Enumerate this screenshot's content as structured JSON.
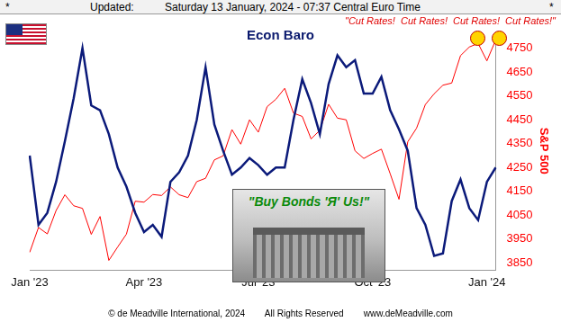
{
  "chart_data": {
    "type": "line",
    "header": [
      "*",
      "Updated:",
      "Saturday 13 January, 2024 - 07:37 Central Euro Time",
      "*"
    ],
    "title": "Econ Baro",
    "annotations": [
      "\"Cut Rates!  Cut Rates!  Cut Rates!  Cut Rates!\"",
      "\"Buy Bonds 'Я' Us!\""
    ],
    "footer": [
      "© de Meadville International, 2024",
      "All Rights Reserved",
      "www.deMeadville.com"
    ],
    "y_label": "S&P 500",
    "categories": [
      "Jan '23",
      null,
      null,
      null,
      null,
      null,
      null,
      null,
      null,
      null,
      null,
      null,
      null,
      "Apr '23",
      null,
      null,
      null,
      null,
      null,
      null,
      null,
      null,
      null,
      null,
      null,
      null,
      "Jul '23",
      null,
      null,
      null,
      null,
      null,
      null,
      null,
      null,
      null,
      null,
      null,
      null,
      "Oct '23",
      null,
      null,
      null,
      null,
      null,
      null,
      null,
      null,
      null,
      null,
      null,
      null,
      "Jan '24",
      null
    ],
    "series": [
      {
        "name": "S&P 500",
        "color": "#ff0000",
        "values": [
          3895,
          3999,
          3972,
          4070,
          4136,
          4090,
          4079,
          3970,
          4045,
          3861,
          3917,
          3971,
          4109,
          4105,
          4137,
          4133,
          4169,
          4136,
          4124,
          4191,
          4205,
          4282,
          4299,
          4409,
          4348,
          4450,
          4398,
          4505,
          4536,
          4582,
          4478,
          4464,
          4370,
          4406,
          4515,
          4457,
          4450,
          4320,
          4288,
          4309,
          4327,
          4224,
          4117,
          4358,
          4415,
          4514,
          4559,
          4595,
          4604,
          4719,
          4755,
          4770,
          4697,
          4784
        ]
      },
      {
        "name": "Econ Baro",
        "color": "#0b1a7a",
        "axis": "y2",
        "values": [
          48,
          19,
          24,
          37,
          54,
          72,
          93,
          69,
          67,
          57,
          43,
          35,
          24,
          16,
          19,
          14,
          37,
          41,
          48,
          63,
          85,
          61,
          50,
          40,
          43,
          47,
          44,
          40,
          43,
          43,
          63,
          80,
          70,
          57,
          78,
          90,
          85,
          88,
          74,
          74,
          81,
          67,
          59,
          50,
          26,
          19,
          6,
          7,
          29,
          38,
          26,
          21,
          37,
          43
        ]
      }
    ],
    "ylim": [
      3820,
      4820
    ],
    "yticks": [
      3850,
      3950,
      4050,
      4150,
      4250,
      4350,
      4450,
      4550,
      4650,
      4750
    ],
    "y2lim": [
      0,
      100
    ],
    "grid": false
  }
}
